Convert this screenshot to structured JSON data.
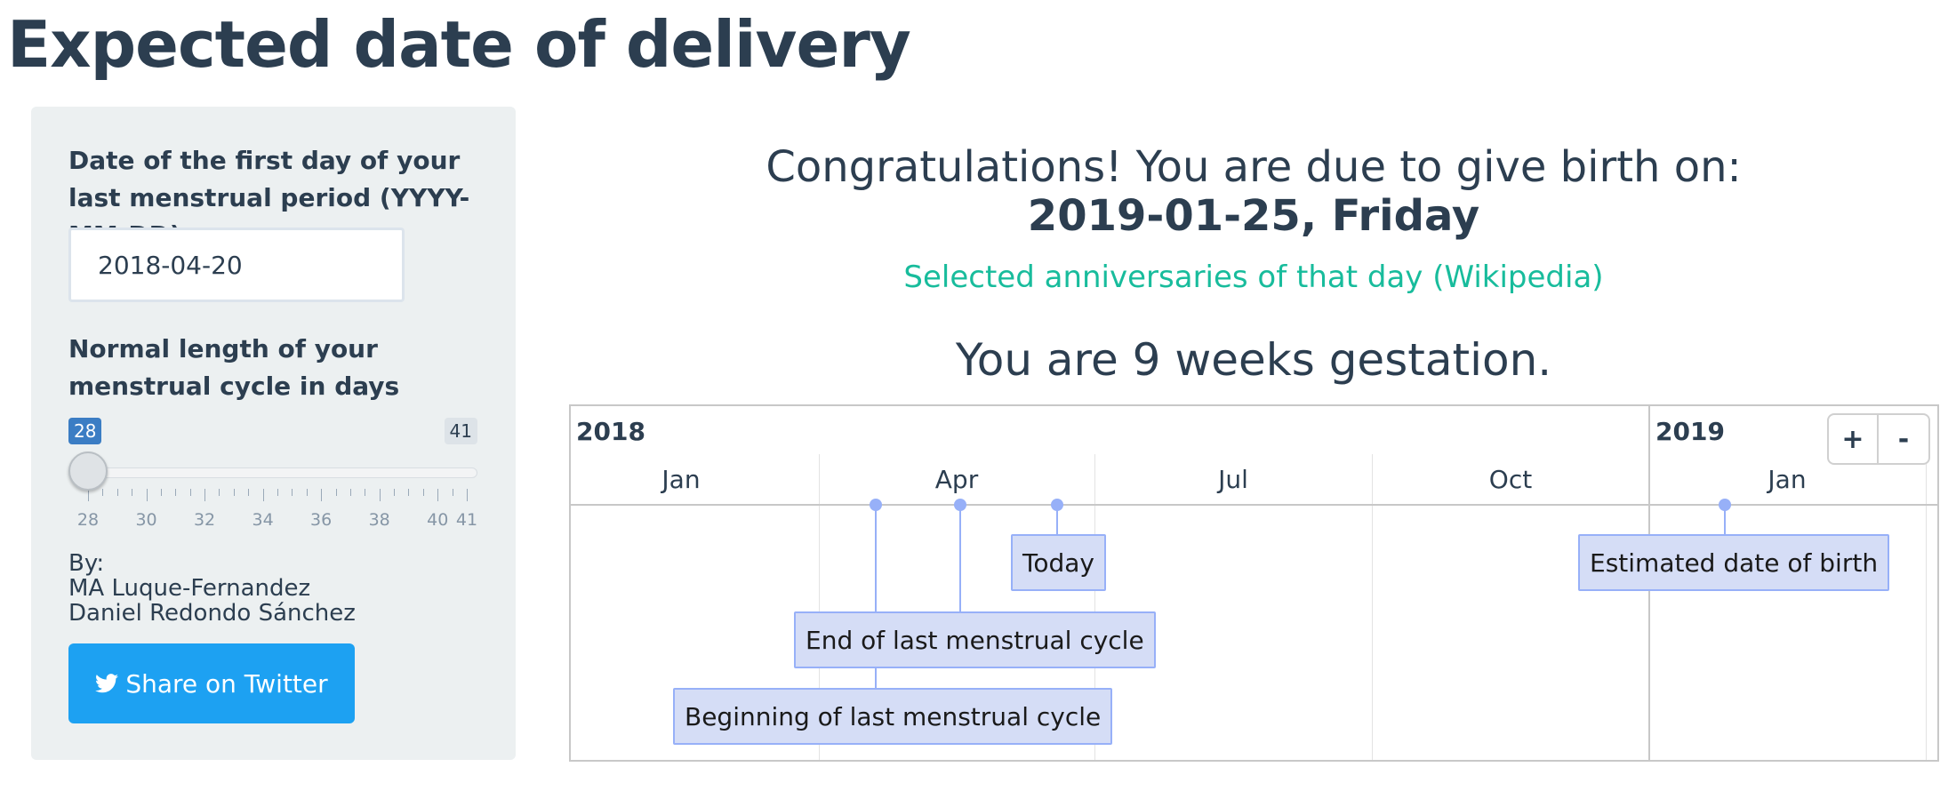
{
  "page": {
    "title": "Expected date of delivery"
  },
  "sidebar": {
    "date_label": "Date of the first day of your last menstrual period (YYYY-MM-DD)",
    "date_value": "2018-04-20",
    "cycle_label": "Normal length of your menstrual cycle in days",
    "slider": {
      "value": 28,
      "min": 28,
      "max": 41,
      "min_label": "28",
      "max_label": "41",
      "tick_labels": [
        "28",
        "30",
        "32",
        "34",
        "36",
        "38",
        "40",
        "41"
      ]
    },
    "by_label": "By:",
    "authors": [
      "MA Luque-Fernandez",
      "Daniel Redondo Sánchez"
    ],
    "share_label": "Share on Twitter"
  },
  "main": {
    "congrats": "Congratulations! You are due to give birth on:",
    "due_date": "2019-01-25, Friday",
    "anniversaries_link": "Selected anniversaries of that day (Wikipedia)",
    "gestation": "You are 9 weeks gestation."
  },
  "timeline": {
    "years": [
      "2018",
      "2019"
    ],
    "months": [
      "Jan",
      "Apr",
      "Jul",
      "Oct",
      "Jan"
    ],
    "zoom_in_label": "+",
    "zoom_out_label": "-",
    "events": [
      {
        "name": "Beginning of last menstrual cycle",
        "date": "2018-04-20"
      },
      {
        "name": "End of last menstrual cycle",
        "date": "2018-05-18"
      },
      {
        "name": "Today",
        "date": "2018-06-22"
      },
      {
        "name": "Estimated date of birth",
        "date": "2019-01-25"
      }
    ]
  },
  "colors": {
    "text": "#2c3e50",
    "link": "#18bc9c",
    "twitter": "#1da1f2",
    "slider_badge": "#3b7dc4",
    "event_border": "#97b0f8",
    "event_fill": "#d5ddf6",
    "sidebar_bg": "#ecf0f1"
  }
}
